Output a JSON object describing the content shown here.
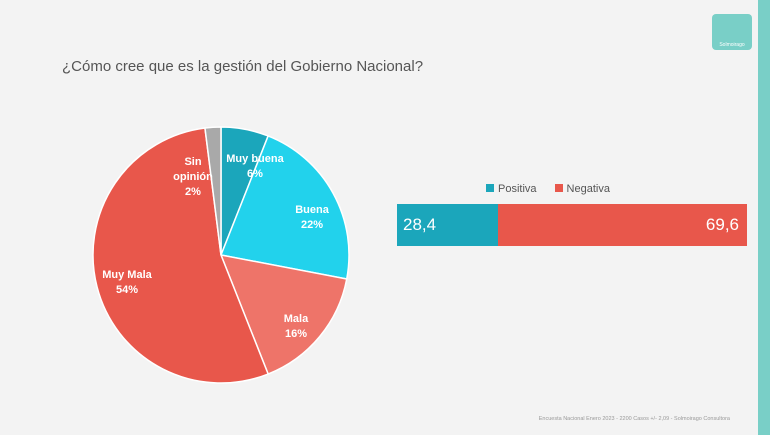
{
  "title": "¿Cómo cree que es la gestión del Gobierno Nacional?",
  "logo": "Solmoirago",
  "footer": "Encuesta Nacional Enero 2023 - 2200 Casos +/- 2,09 - Solmoirago Consultora",
  "chart_data": [
    {
      "type": "pie",
      "categories": [
        "Muy buena",
        "Buena",
        "Mala",
        "Muy Mala",
        "Sin opinión"
      ],
      "values": [
        6,
        22,
        16,
        54,
        2
      ],
      "labels": [
        "6%",
        "22%",
        "16%",
        "54%",
        "2%"
      ],
      "colors": [
        "#1ba6bb",
        "#22d2ec",
        "#ee7469",
        "#e8574b",
        "#a9a9a9"
      ]
    },
    {
      "type": "bar",
      "orientation": "stacked-horizontal",
      "series": [
        {
          "name": "Positiva",
          "value": 28.4,
          "label": "28,4",
          "color": "#1ba6bb"
        },
        {
          "name": "Negativa",
          "value": 69.6,
          "label": "69,6",
          "color": "#e8574b"
        }
      ],
      "legend": "top"
    }
  ]
}
